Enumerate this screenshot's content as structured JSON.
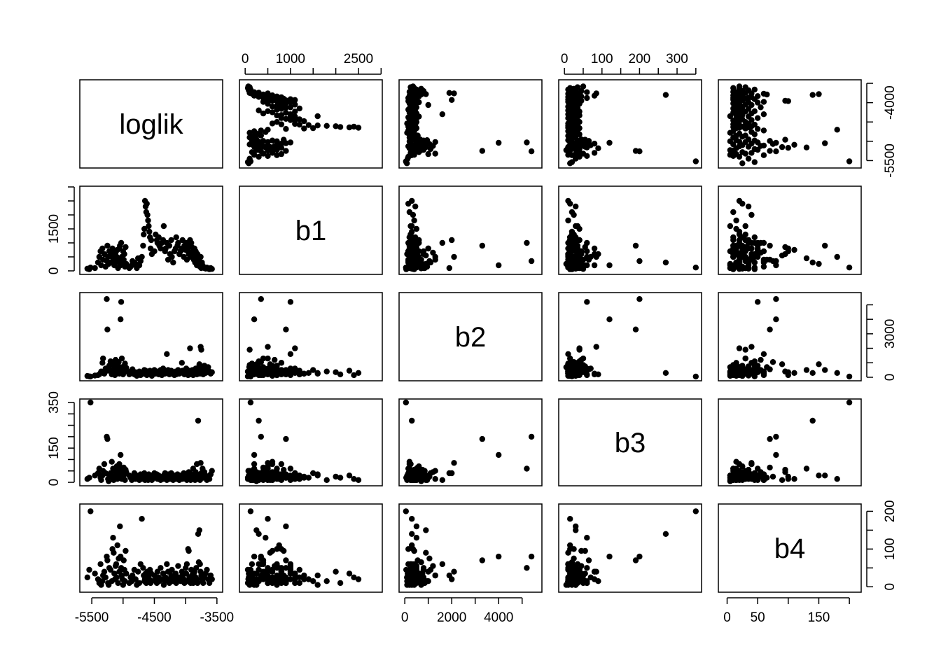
{
  "chart_data": {
    "type": "scatter",
    "kind": "scatterplot-matrix",
    "variables": [
      "loglik",
      "b1",
      "b2",
      "b3",
      "b4"
    ],
    "axes": {
      "loglik": {
        "range": [
          -5600,
          -3500
        ],
        "ticks": [
          -5500,
          -5000,
          -4500,
          -4000,
          -3500
        ],
        "labels": [
          "-5500",
          "-4500",
          "-3500",
          "-5500",
          "-4000"
        ]
      },
      "b1": {
        "range": [
          0,
          2900
        ],
        "ticks": [
          0,
          500,
          1000,
          1500,
          2000,
          2500,
          3000
        ],
        "labels": [
          "0",
          "1000",
          "2500",
          "0",
          "1500"
        ]
      },
      "b2": {
        "range": [
          0,
          5600
        ],
        "ticks": [
          0,
          1000,
          2000,
          3000,
          4000,
          5000
        ],
        "labels": [
          "0",
          "2000",
          "4000",
          "0",
          "3000"
        ]
      },
      "b3": {
        "range": [
          0,
          350
        ],
        "ticks": [
          0,
          50,
          100,
          150,
          200,
          250,
          300,
          350
        ],
        "labels": [
          "0",
          "100",
          "200",
          "300",
          "0",
          "150",
          "350"
        ]
      },
      "b4": {
        "range": [
          -5,
          210
        ],
        "ticks": [
          0,
          50,
          100,
          150,
          200
        ],
        "labels": [
          "0",
          "50",
          "150",
          "0",
          "100",
          "200"
        ]
      }
    },
    "tick_label_rules": {
      "loglik": {
        "bottom": [
          -5500,
          -4500,
          -3500
        ],
        "right": [
          -5500,
          -4000
        ]
      },
      "b1": {
        "top": [
          0,
          1000,
          2500
        ],
        "left": [
          0,
          1500
        ]
      },
      "b2": {
        "bottom": [
          0,
          2000,
          4000
        ],
        "right": [
          0,
          3000
        ]
      },
      "b3": {
        "top": [
          0,
          100,
          200,
          300
        ],
        "left": [
          0,
          150,
          350
        ]
      },
      "b4": {
        "bottom": [
          0,
          50,
          150
        ],
        "right": [
          0,
          100,
          200
        ]
      }
    },
    "observations": [
      [
        -5570,
        80,
        90,
        15,
        25
      ],
      [
        -5540,
        60,
        60,
        20,
        45
      ],
      [
        -5520,
        120,
        50,
        350,
        200
      ],
      [
        -5450,
        100,
        120,
        30,
        35
      ],
      [
        -5400,
        300,
        150,
        40,
        20
      ],
      [
        -5380,
        500,
        200,
        60,
        10
      ],
      [
        -5360,
        700,
        300,
        20,
        60
      ],
      [
        -5350,
        200,
        400,
        10,
        5
      ],
      [
        -5330,
        800,
        1000,
        30,
        15
      ],
      [
        -5320,
        400,
        1300,
        50,
        30
      ],
      [
        -5300,
        600,
        250,
        80,
        40
      ],
      [
        -5280,
        150,
        600,
        40,
        25
      ],
      [
        -5260,
        350,
        5400,
        200,
        80
      ],
      [
        -5250,
        900,
        3300,
        190,
        70
      ],
      [
        -5240,
        500,
        450,
        15,
        10
      ],
      [
        -5230,
        250,
        700,
        5,
        5
      ],
      [
        -5220,
        700,
        800,
        30,
        50
      ],
      [
        -5200,
        300,
        1100,
        40,
        45
      ],
      [
        -5180,
        600,
        200,
        90,
        15
      ],
      [
        -5170,
        800,
        350,
        25,
        100
      ],
      [
        -5160,
        450,
        500,
        60,
        130
      ],
      [
        -5150,
        550,
        900,
        10,
        90
      ],
      [
        -5140,
        200,
        750,
        55,
        35
      ],
      [
        -5130,
        400,
        150,
        20,
        20
      ],
      [
        -5120,
        650,
        1200,
        45,
        55
      ],
      [
        -5110,
        300,
        400,
        35,
        60
      ],
      [
        -5100,
        500,
        600,
        70,
        25
      ],
      [
        -5090,
        750,
        300,
        15,
        110
      ],
      [
        -5080,
        100,
        850,
        50,
        10
      ],
      [
        -5070,
        350,
        1050,
        25,
        75
      ],
      [
        -5060,
        800,
        250,
        80,
        40
      ],
      [
        -5050,
        900,
        500,
        30,
        160
      ],
      [
        -5040,
        200,
        4000,
        120,
        80
      ],
      [
        -5030,
        1000,
        5200,
        60,
        50
      ],
      [
        -5020,
        500,
        1300,
        15,
        30
      ],
      [
        -5010,
        300,
        700,
        40,
        20
      ],
      [
        -5000,
        700,
        200,
        20,
        5
      ],
      [
        -4990,
        400,
        550,
        65,
        70
      ],
      [
        -4980,
        600,
        800,
        35,
        45
      ],
      [
        -4970,
        150,
        950,
        10,
        15
      ],
      [
        -4960,
        850,
        400,
        55,
        95
      ],
      [
        -4950,
        250,
        650,
        45,
        35
      ],
      [
        -4900,
        100,
        200,
        30,
        10
      ],
      [
        -4880,
        150,
        400,
        20,
        25
      ],
      [
        -4860,
        200,
        300,
        10,
        15
      ],
      [
        -4850,
        350,
        550,
        25,
        30
      ],
      [
        -4820,
        300,
        200,
        40,
        45
      ],
      [
        -4800,
        250,
        350,
        15,
        20
      ],
      [
        -4780,
        100,
        100,
        30,
        5
      ],
      [
        -4760,
        450,
        250,
        20,
        40
      ],
      [
        -4740,
        200,
        400,
        10,
        10
      ],
      [
        -4720,
        350,
        150,
        35,
        60
      ],
      [
        -4700,
        500,
        300,
        15,
        180
      ],
      [
        -4680,
        900,
        350,
        20,
        50
      ],
      [
        -4670,
        1300,
        250,
        25,
        30
      ],
      [
        -4660,
        1500,
        500,
        40,
        15
      ],
      [
        -4650,
        2500,
        300,
        10,
        20
      ],
      [
        -4640,
        2300,
        450,
        30,
        35
      ],
      [
        -4630,
        2100,
        200,
        20,
        10
      ],
      [
        -4620,
        2400,
        150,
        15,
        25
      ],
      [
        -4610,
        2000,
        350,
        25,
        40
      ],
      [
        -4600,
        1800,
        400,
        10,
        15
      ],
      [
        -4590,
        1600,
        250,
        35,
        30
      ],
      [
        -4580,
        1400,
        300,
        20,
        20
      ],
      [
        -4570,
        1200,
        450,
        15,
        45
      ],
      [
        -4560,
        800,
        200,
        30,
        10
      ],
      [
        -4550,
        1100,
        350,
        20,
        35
      ],
      [
        -4540,
        600,
        100,
        10,
        15
      ],
      [
        -4500,
        700,
        500,
        40,
        30
      ],
      [
        -4480,
        1300,
        250,
        20,
        20
      ],
      [
        -4460,
        1100,
        300,
        35,
        10
      ],
      [
        -4450,
        1000,
        400,
        15,
        40
      ],
      [
        -4430,
        1200,
        200,
        30,
        25
      ],
      [
        -4420,
        900,
        350,
        20,
        15
      ],
      [
        -4400,
        800,
        500,
        10,
        50
      ],
      [
        -4380,
        1000,
        150,
        25,
        20
      ],
      [
        -4360,
        1100,
        600,
        15,
        35
      ],
      [
        -4350,
        1600,
        300,
        30,
        5
      ],
      [
        -4330,
        700,
        250,
        40,
        15
      ],
      [
        -4320,
        800,
        400,
        20,
        25
      ],
      [
        -4300,
        1000,
        1600,
        10,
        60
      ],
      [
        -4280,
        400,
        500,
        35,
        40
      ],
      [
        -4260,
        900,
        200,
        20,
        10
      ],
      [
        -4250,
        600,
        300,
        15,
        20
      ],
      [
        -4230,
        1100,
        450,
        40,
        30
      ],
      [
        -4220,
        500,
        250,
        25,
        45
      ],
      [
        -4200,
        300,
        350,
        10,
        15
      ],
      [
        -4180,
        700,
        150,
        30,
        25
      ],
      [
        -4160,
        800,
        400,
        20,
        35
      ],
      [
        -4150,
        1200,
        200,
        15,
        10
      ],
      [
        -4130,
        900,
        300,
        35,
        20
      ],
      [
        -4120,
        1000,
        500,
        25,
        55
      ],
      [
        -4100,
        600,
        250,
        10,
        25
      ],
      [
        -4080,
        700,
        350,
        30,
        15
      ],
      [
        -4060,
        800,
        1000,
        20,
        40
      ],
      [
        -4050,
        1100,
        450,
        15,
        30
      ],
      [
        -4030,
        500,
        300,
        40,
        20
      ],
      [
        -4020,
        900,
        200,
        25,
        10
      ],
      [
        -4000,
        750,
        350,
        30,
        50
      ],
      [
        -3990,
        1000,
        600,
        20,
        35
      ],
      [
        -3980,
        400,
        250,
        10,
        60
      ],
      [
        -3970,
        800,
        500,
        35,
        15
      ],
      [
        -3960,
        700,
        150,
        15,
        100
      ],
      [
        -3950,
        600,
        400,
        45,
        95
      ],
      [
        -3940,
        900,
        300,
        20,
        25
      ],
      [
        -3930,
        1100,
        2000,
        40,
        20
      ],
      [
        -3920,
        500,
        450,
        10,
        10
      ],
      [
        -3910,
        1000,
        200,
        30,
        45
      ],
      [
        -3900,
        850,
        350,
        25,
        30
      ],
      [
        -3890,
        600,
        500,
        15,
        20
      ],
      [
        -3880,
        700,
        150,
        60,
        10
      ],
      [
        -3870,
        400,
        300,
        20,
        35
      ],
      [
        -3860,
        800,
        250,
        35,
        40
      ],
      [
        -3850,
        300,
        400,
        10,
        15
      ],
      [
        -3840,
        700,
        600,
        45,
        25
      ],
      [
        -3830,
        500,
        350,
        25,
        50
      ],
      [
        -3820,
        200,
        200,
        80,
        20
      ],
      [
        -3810,
        600,
        500,
        15,
        10
      ],
      [
        -3800,
        300,
        300,
        270,
        140
      ],
      [
        -3790,
        400,
        700,
        20,
        65
      ],
      [
        -3780,
        250,
        900,
        30,
        150
      ],
      [
        -3770,
        150,
        250,
        10,
        60
      ],
      [
        -3760,
        500,
        2100,
        85,
        40
      ],
      [
        -3750,
        100,
        1900,
        40,
        30
      ],
      [
        -3740,
        300,
        400,
        25,
        20
      ],
      [
        -3730,
        200,
        600,
        60,
        15
      ],
      [
        -3720,
        150,
        200,
        20,
        10
      ],
      [
        -3700,
        100,
        800,
        45,
        25
      ],
      [
        -3680,
        80,
        300,
        30,
        35
      ],
      [
        -3660,
        120,
        500,
        10,
        45
      ],
      [
        -3640,
        90,
        700,
        25,
        20
      ],
      [
        -3620,
        60,
        400,
        15,
        10
      ],
      [
        -3600,
        100,
        250,
        35,
        30
      ],
      [
        -3580,
        70,
        350,
        50,
        20
      ]
    ]
  }
}
